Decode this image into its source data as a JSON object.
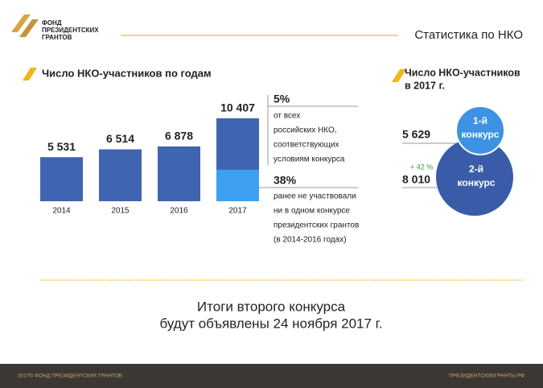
{
  "header": {
    "logo_lines": [
      "ФОНД",
      "ПРЕЗИДЕНТСКИХ",
      "ГРАНТОВ"
    ],
    "title": "Статистика по НКО"
  },
  "chart_data": {
    "type": "bar",
    "title": "Число НКО-участников по годам",
    "categories": [
      "2014",
      "2015",
      "2016",
      "2017"
    ],
    "values": [
      5531,
      6514,
      6878,
      10407
    ],
    "value_labels": [
      "5 531",
      "6 514",
      "6 878",
      "10 407"
    ],
    "color": "#3f64b0",
    "highlight_color": "#3ea0f0",
    "annotations": [
      {
        "label": "5%",
        "lines": [
          "от всех",
          "российских НКО,",
          "соответствующих",
          "условиям конкурса"
        ]
      },
      {
        "value": 38,
        "label": "38%",
        "lines": [
          "ранее не участвовали",
          "ни в одном конкурсе",
          "президентских грантов",
          "(в 2014-2016 годах)"
        ]
      }
    ]
  },
  "comparison": {
    "title_lines": [
      "Число НКО-участников",
      "в 2017 г."
    ],
    "items": [
      {
        "label": "5 629",
        "name_lines": [
          "1-й",
          "конкурс"
        ]
      },
      {
        "label": "8 010",
        "name_lines": [
          "2-й",
          "конкурс"
        ]
      }
    ],
    "growth": "+ 42 %"
  },
  "announcement": [
    "Итоги второго конкурса",
    "будут объявлены 24 ноября 2017 г."
  ],
  "footer": {
    "left": "2017© ФОНД ПРЕЗИДЕНТСКИХ ГРАНТОВ",
    "right": "ПРЕЗИДЕНТСКИЕГРАНТЫ.РФ"
  }
}
